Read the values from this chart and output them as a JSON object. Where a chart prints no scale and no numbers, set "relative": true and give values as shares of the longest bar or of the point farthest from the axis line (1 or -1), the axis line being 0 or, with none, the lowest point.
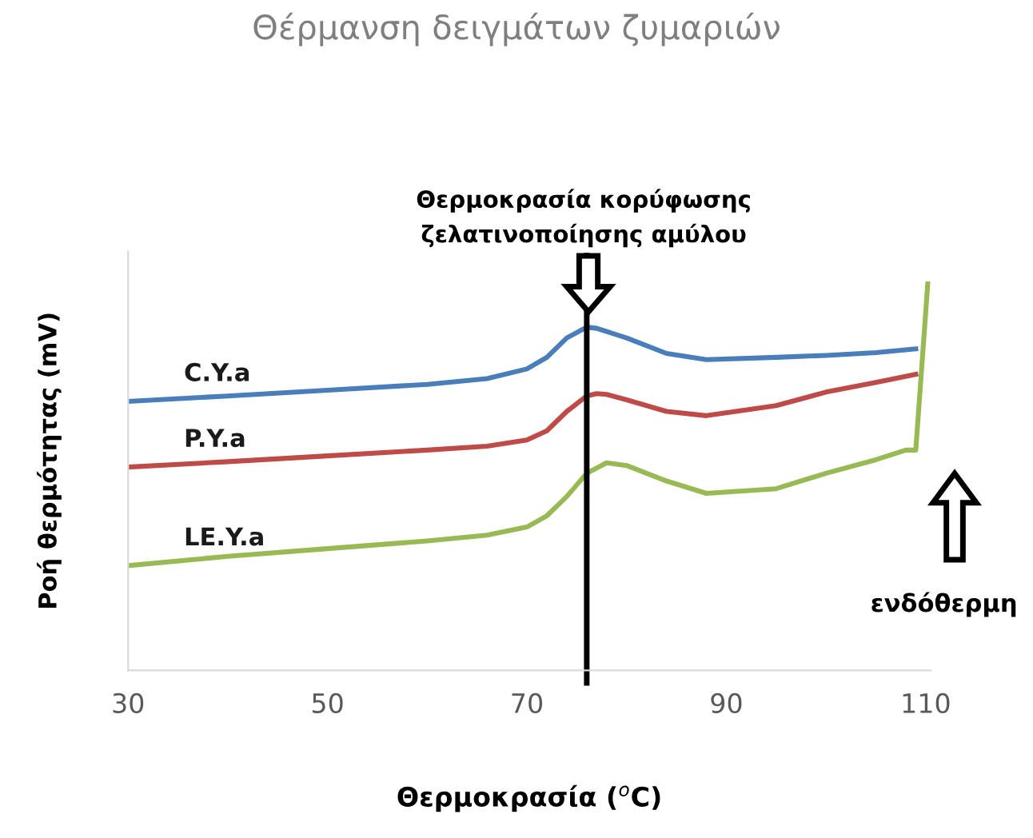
{
  "chart_data": {
    "type": "line",
    "title": "Θέρμανση δειγμάτων ζυμαριών",
    "xlabel": "Θερμοκρασία ($^{o}$C)",
    "ylabel": "Ροή θερμότητας (mV)",
    "relative": true,
    "xlim": [
      30,
      110.5
    ],
    "xticks": [
      30,
      50,
      70,
      90,
      110
    ],
    "grid": false,
    "legend": false,
    "marker": "none",
    "line_style": "solid",
    "series": [
      {
        "name": "C.Y.a",
        "color": "#4a7ebb",
        "x": [
          30,
          40,
          50,
          60,
          66,
          70,
          72,
          74,
          76,
          77,
          80,
          84,
          88,
          95,
          100,
          105,
          109
        ],
        "values": [
          0.696,
          0.71,
          0.725,
          0.74,
          0.755,
          0.78,
          0.81,
          0.86,
          0.888,
          0.885,
          0.86,
          0.82,
          0.804,
          0.81,
          0.815,
          0.822,
          0.832
        ]
      },
      {
        "name": "P.Y.a",
        "color": "#be4b48",
        "x": [
          30,
          40,
          50,
          60,
          66,
          70,
          72,
          74,
          76,
          77,
          78,
          80,
          84,
          88,
          95,
          100,
          105,
          109
        ],
        "values": [
          0.526,
          0.54,
          0.555,
          0.57,
          0.58,
          0.596,
          0.62,
          0.67,
          0.71,
          0.716,
          0.714,
          0.7,
          0.67,
          0.659,
          0.685,
          0.72,
          0.745,
          0.766
        ]
      },
      {
        "name": "LE.Y.a",
        "color": "#98b954",
        "x": [
          30,
          40,
          50,
          60,
          66,
          70,
          72,
          74,
          76,
          78,
          80,
          84,
          88,
          95,
          100,
          105,
          108,
          109,
          110.2
        ],
        "values": [
          0.271,
          0.295,
          0.315,
          0.335,
          0.35,
          0.371,
          0.4,
          0.45,
          0.51,
          0.537,
          0.53,
          0.49,
          0.458,
          0.47,
          0.51,
          0.545,
          0.57,
          0.57,
          1
        ]
      }
    ],
    "ref_lines": [
      {
        "axis": "x",
        "value": 76,
        "label": "Θερμοκρασία κορύφωσης ζελατινοποίησης αμύλου",
        "color": "#000000",
        "line_style": "solid"
      }
    ],
    "annotations": [
      "ενδόθερμη"
    ]
  }
}
